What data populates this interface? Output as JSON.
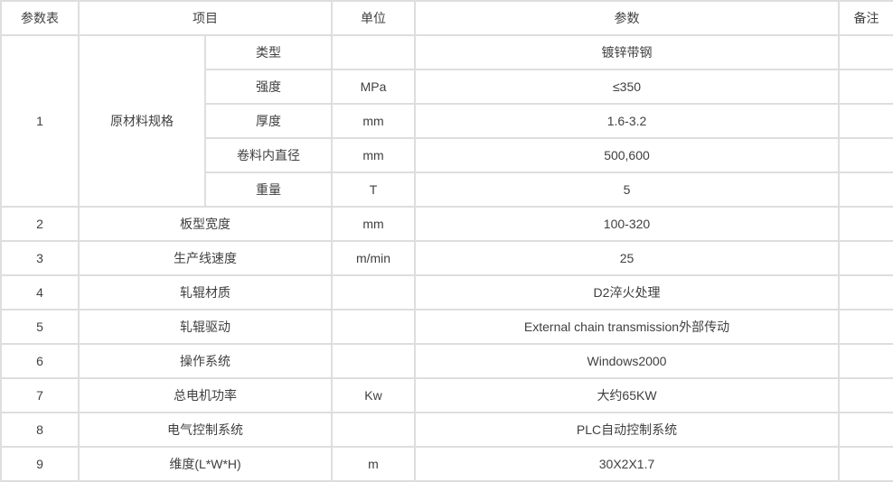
{
  "table": {
    "headers": {
      "index": "参数表",
      "item": "项目",
      "unit": "单位",
      "param": "参数",
      "note": "备注"
    },
    "group_row": {
      "index": "1",
      "item": "原材料规格",
      "sub_rows": [
        {
          "sub_item": "类型",
          "unit": "",
          "param": "镀锌带钢",
          "note": ""
        },
        {
          "sub_item": "强度",
          "unit": "MPa",
          "param": "≤350",
          "note": ""
        },
        {
          "sub_item": "厚度",
          "unit": "mm",
          "param": "1.6-3.2",
          "note": ""
        },
        {
          "sub_item": "卷料内直径",
          "unit": "mm",
          "param": "500,600",
          "note": ""
        },
        {
          "sub_item": "重量",
          "unit": "T",
          "param": "5",
          "note": ""
        }
      ]
    },
    "rows": [
      {
        "index": "2",
        "item": "板型宽度",
        "unit": "mm",
        "param": "100-320",
        "note": ""
      },
      {
        "index": "3",
        "item": "生产线速度",
        "unit": "m/min",
        "param": "25",
        "note": ""
      },
      {
        "index": "4",
        "item": "轧辊材质",
        "unit": "",
        "param": "D2淬火处理",
        "note": ""
      },
      {
        "index": "5",
        "item": "轧辊驱动",
        "unit": "",
        "param": "External chain transmission外部传动",
        "note": ""
      },
      {
        "index": "6",
        "item": "操作系统",
        "unit": "",
        "param": "Windows2000",
        "note": ""
      },
      {
        "index": "7",
        "item": "总电机功率",
        "unit": "Kw",
        "param": "大约65KW",
        "note": ""
      },
      {
        "index": "8",
        "item": "电气控制系统",
        "unit": "",
        "param": "PLC自动控制系统",
        "note": ""
      },
      {
        "index": "9",
        "item": "维度(L*W*H)",
        "unit": "m",
        "param": "30X2X1.7",
        "note": ""
      }
    ],
    "colors": {
      "border": "#dedede",
      "text": "#404040",
      "background": "#ffffff"
    }
  }
}
